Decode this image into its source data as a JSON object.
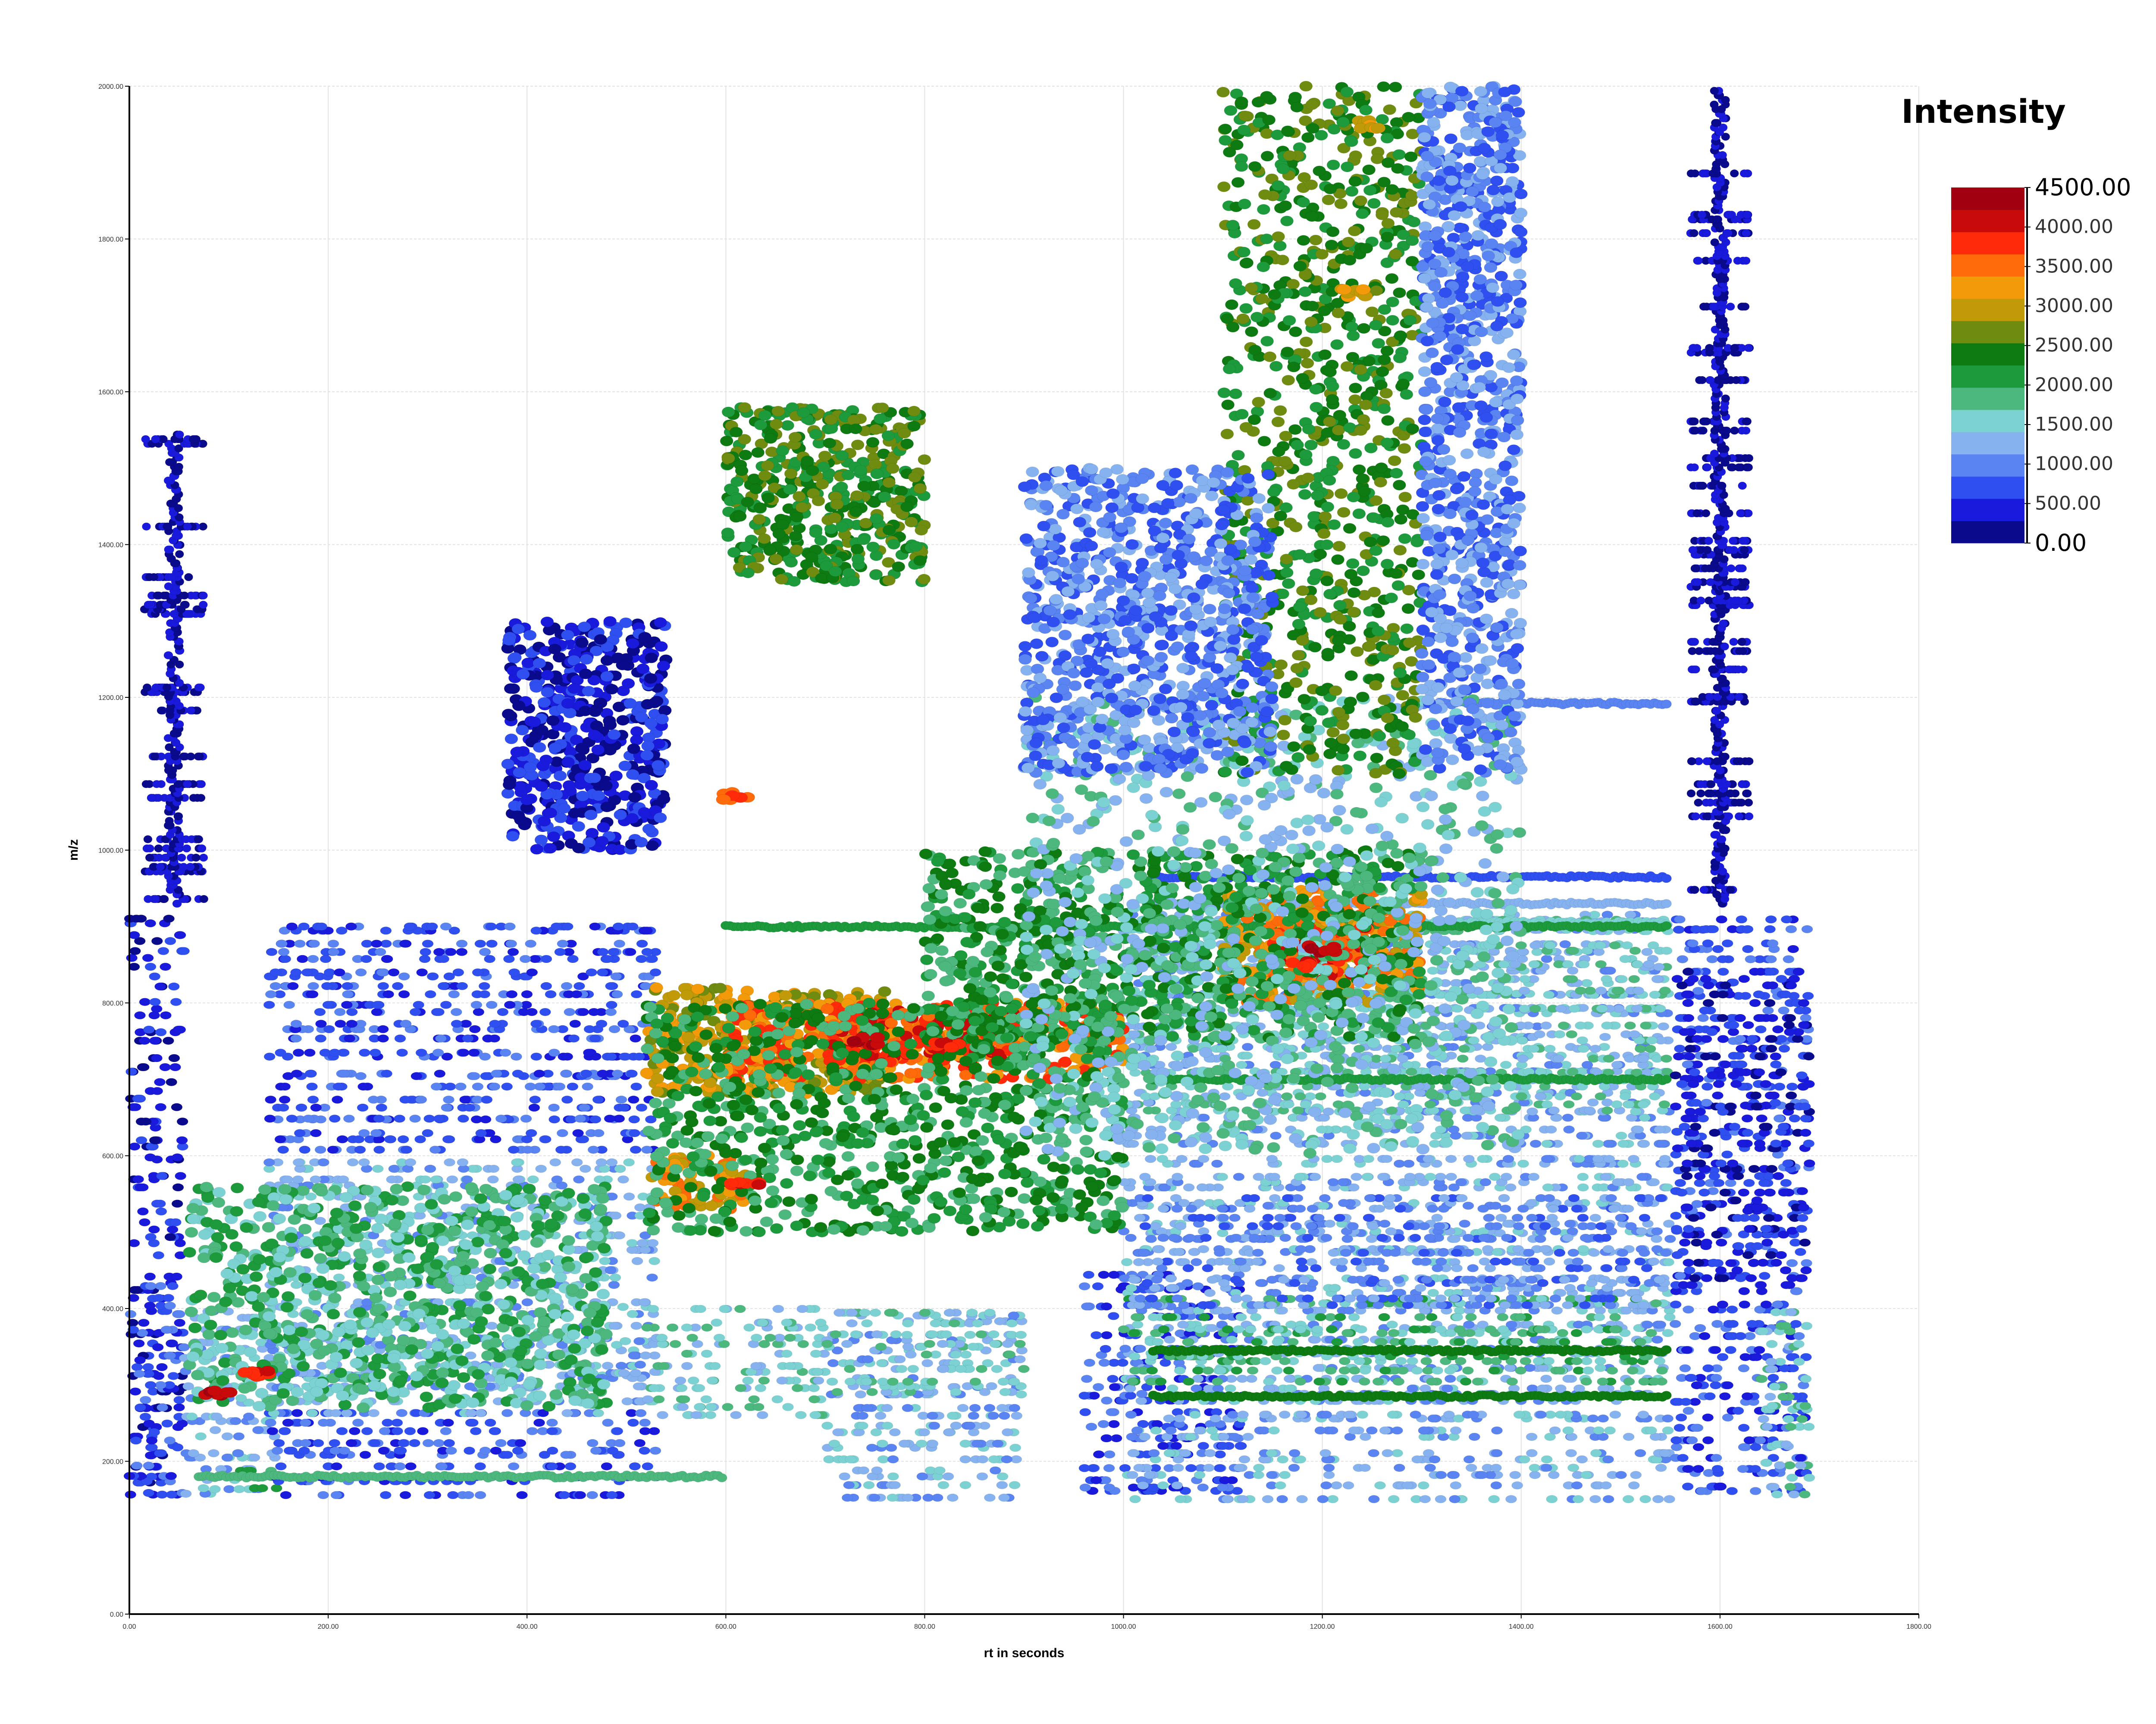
{
  "chart_data": {
    "type": "scatter",
    "title": "",
    "xlabel": "rt in seconds",
    "ylabel": "m/z",
    "xlim": [
      0,
      1800
    ],
    "ylim": [
      0,
      2000
    ],
    "x_ticks": [
      "0.00",
      "200.00",
      "400.00",
      "600.00",
      "800.00",
      "1000.00",
      "1200.00",
      "1400.00",
      "1600.00",
      "1800.00"
    ],
    "y_ticks": [
      "0.00",
      "200.00",
      "400.00",
      "600.00",
      "800.00",
      "1000.00",
      "1200.00",
      "1400.00",
      "1600.00",
      "1800.00",
      "2000.00"
    ],
    "grid": true,
    "legend": {
      "title": "Intensity",
      "placement": "top-right",
      "range": [
        0,
        4500
      ],
      "ticks": [
        "4500.00",
        "4000.00",
        "3500.00",
        "3000.00",
        "2500.00",
        "2000.00",
        "1500.00",
        "1000.00",
        "500.00",
        "0.00"
      ]
    },
    "colorscale": [
      "#0a0a8c",
      "#1a1adc",
      "#2f4ff0",
      "#5a84f2",
      "#86b2f0",
      "#7cd2d2",
      "#4db87e",
      "#1c9a3c",
      "#0e7a12",
      "#6f8c10",
      "#c09a08",
      "#f29a0a",
      "#ff6a0a",
      "#ff2a0a",
      "#c80a0a",
      "#a00010"
    ],
    "bands": [
      {
        "x": [
          0,
          55
        ],
        "y": [
          150,
          920
        ],
        "level": 1
      },
      {
        "x": [
          0,
          55
        ],
        "y": [
          150,
          430
        ],
        "level": 2
      },
      {
        "x": [
          55,
          150
        ],
        "y": [
          150,
          400
        ],
        "level": 4
      },
      {
        "x": [
          55,
          150
        ],
        "y": [
          160,
          190
        ],
        "level": 6
      },
      {
        "x": [
          140,
          530
        ],
        "y": [
          150,
          270
        ],
        "level": 2
      },
      {
        "x": [
          140,
          530
        ],
        "y": [
          260,
          360
        ],
        "level": 4
      },
      {
        "x": [
          140,
          530
        ],
        "y": [
          300,
          600
        ],
        "level": 4
      },
      {
        "x": [
          140,
          530
        ],
        "y": [
          600,
          910
        ],
        "level": 2
      },
      {
        "x": [
          520,
          700
        ],
        "y": [
          250,
          400
        ],
        "level": 5
      },
      {
        "x": [
          700,
          900
        ],
        "y": [
          150,
          400
        ],
        "level": 4
      },
      {
        "x": [
          700,
          900
        ],
        "y": [
          280,
          400
        ],
        "level": 5
      },
      {
        "x": [
          960,
          1120
        ],
        "y": [
          150,
          450
        ],
        "level": 2
      },
      {
        "x": [
          1000,
          1550
        ],
        "y": [
          150,
          920
        ],
        "level": 4
      },
      {
        "x": [
          1000,
          1550
        ],
        "y": [
          300,
          420
        ],
        "level": 6
      },
      {
        "x": [
          1000,
          1550
        ],
        "y": [
          650,
          920
        ],
        "level": 5
      },
      {
        "x": [
          1000,
          1550
        ],
        "y": [
          400,
          550
        ],
        "level": 3
      },
      {
        "x": [
          1555,
          1690
        ],
        "y": [
          150,
          920
        ],
        "level": 2
      },
      {
        "x": [
          1555,
          1690
        ],
        "y": [
          430,
          850
        ],
        "level": 1
      },
      {
        "x": [
          1640,
          1690
        ],
        "y": [
          150,
          400
        ],
        "level": 5
      }
    ],
    "lines": [
      {
        "x": [
          1290,
          1550
        ],
        "y": 1192,
        "level": 3
      },
      {
        "x": [
          1030,
          1550
        ],
        "y": 965,
        "level": 2
      },
      {
        "x": [
          1030,
          1550
        ],
        "y": 930,
        "level": 4
      },
      {
        "x": [
          1030,
          1550
        ],
        "y": 905,
        "level": 5
      },
      {
        "x": [
          1030,
          1550
        ],
        "y": 700,
        "level": 7
      },
      {
        "x": [
          1030,
          1550
        ],
        "y": 345,
        "level": 8
      },
      {
        "x": [
          1030,
          1550
        ],
        "y": 285,
        "level": 8
      },
      {
        "x": [
          70,
          600
        ],
        "y": 180,
        "level": 6
      },
      {
        "x": [
          600,
          1550
        ],
        "y": 900,
        "level": 7
      }
    ],
    "columns": [
      {
        "x": 45,
        "y": [
          930,
          1550
        ],
        "level": 1
      },
      {
        "x": 1600,
        "y": [
          930,
          2000
        ],
        "level": 1
      }
    ],
    "clusters": [
      {
        "x": [
          520,
          760
        ],
        "y": [
          680,
          820
        ],
        "level": 10
      },
      {
        "x": [
          600,
          1000
        ],
        "y": [
          700,
          800
        ],
        "level": 12
      },
      {
        "x": [
          700,
          900
        ],
        "y": [
          720,
          790
        ],
        "level": 13
      },
      {
        "x": [
          1100,
          1300
        ],
        "y": [
          800,
          950
        ],
        "level": 11
      },
      {
        "x": [
          1150,
          1250
        ],
        "y": [
          830,
          900
        ],
        "level": 13
      },
      {
        "x": [
          520,
          620
        ],
        "y": [
          530,
          600
        ],
        "level": 11
      },
      {
        "x": [
          800,
          1300
        ],
        "y": [
          750,
          1000
        ],
        "level": 7
      },
      {
        "x": [
          520,
          1000
        ],
        "y": [
          500,
          800
        ],
        "level": 7
      },
      {
        "x": [
          900,
          1400
        ],
        "y": [
          600,
          1200
        ],
        "level": 5
      },
      {
        "x": [
          60,
          480
        ],
        "y": [
          270,
          560
        ],
        "level": 6
      },
      {
        "x": [
          600,
          800
        ],
        "y": [
          1350,
          1580
        ],
        "level": 8
      },
      {
        "x": [
          1100,
          1300
        ],
        "y": [
          1100,
          2000
        ],
        "level": 8
      },
      {
        "x": [
          1300,
          1400
        ],
        "y": [
          1100,
          2000
        ],
        "level": 3
      },
      {
        "x": [
          380,
          540
        ],
        "y": [
          1000,
          1300
        ],
        "level": 1
      },
      {
        "x": [
          900,
          1150
        ],
        "y": [
          1100,
          1500
        ],
        "level": 3
      }
    ],
    "hotspots": [
      {
        "x": 90,
        "y": 290,
        "level": 14
      },
      {
        "x": 130,
        "y": 315,
        "level": 13
      },
      {
        "x": 610,
        "y": 1070,
        "level": 12
      },
      {
        "x": 620,
        "y": 560,
        "level": 13
      },
      {
        "x": 1200,
        "y": 870,
        "level": 14
      },
      {
        "x": 1175,
        "y": 850,
        "level": 13
      },
      {
        "x": 740,
        "y": 750,
        "level": 14
      },
      {
        "x": 820,
        "y": 745,
        "level": 13
      },
      {
        "x": 1250,
        "y": 1950,
        "level": 10
      },
      {
        "x": 1230,
        "y": 1730,
        "level": 10
      }
    ]
  }
}
